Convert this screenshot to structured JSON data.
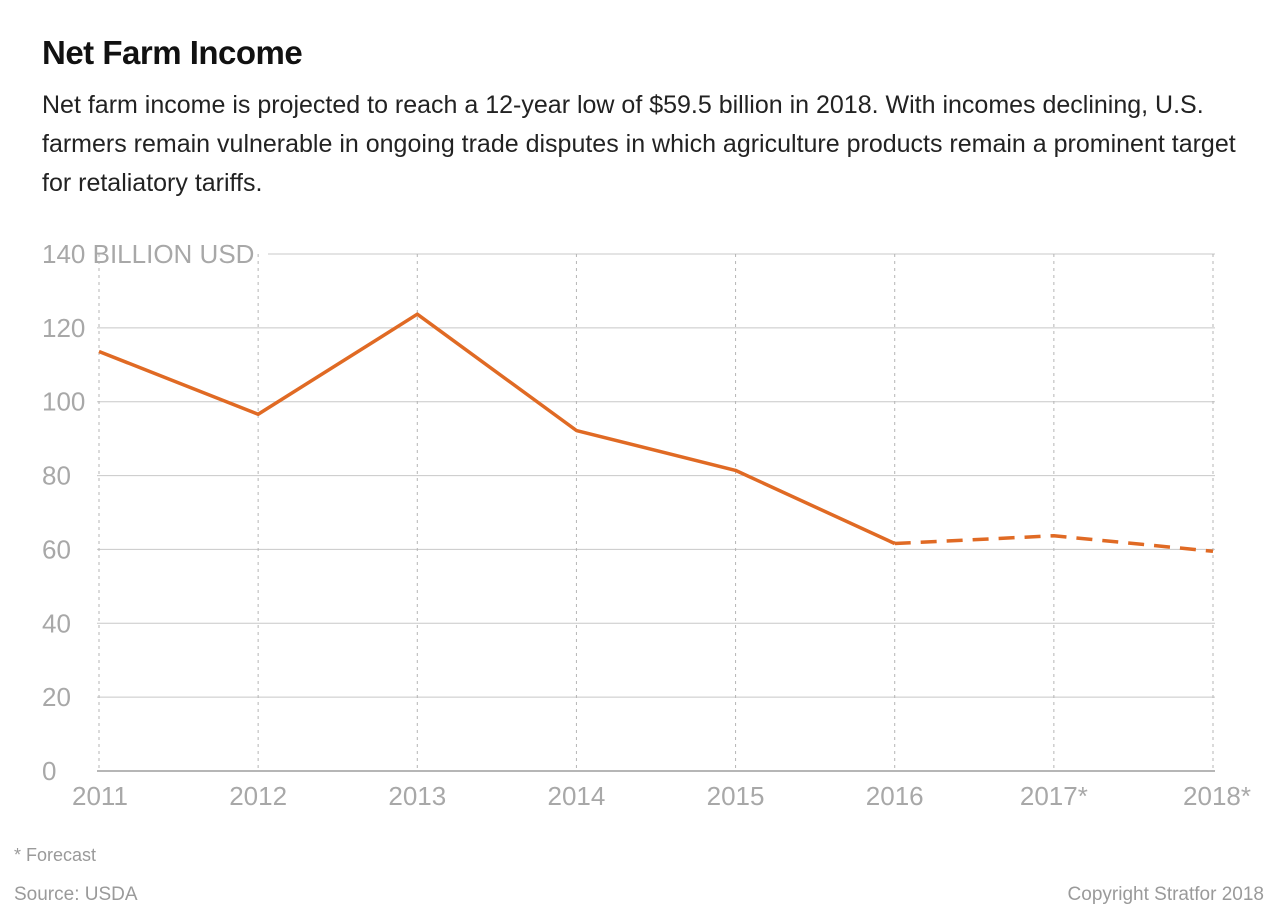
{
  "title": "Net Farm Income",
  "subtitle": "Net farm income is projected to reach a 12-year low of $59.5 billion in 2018. With incomes declining, U.S. farmers remain vulnerable in ongoing trade disputes in which agriculture products remain a prominent target for retaliatory tariffs.",
  "footnote": "* Forecast",
  "source": "Source: USDA",
  "copyright": "Copyright Stratfor 2018",
  "chart_data": {
    "type": "line",
    "ylabel": "BILLION USD",
    "ylim": [
      0,
      140
    ],
    "yticks": [
      0,
      20,
      40,
      60,
      80,
      100,
      120,
      140
    ],
    "categories": [
      "2011",
      "2012",
      "2013",
      "2014",
      "2015",
      "2016",
      "2017*",
      "2018*"
    ],
    "series": [
      {
        "values": [
          113.6,
          96.6,
          123.7,
          92.2,
          81.4,
          61.6,
          63.7,
          59.5
        ],
        "forecast_from_index": 5,
        "color": "#e06a24"
      }
    ],
    "grid": true,
    "vertical_grid": "dotted",
    "legend": "none"
  },
  "colors": {
    "line": "#e06a24",
    "grid": "#c8c8c8",
    "axis_text": "#a8a8a8"
  }
}
